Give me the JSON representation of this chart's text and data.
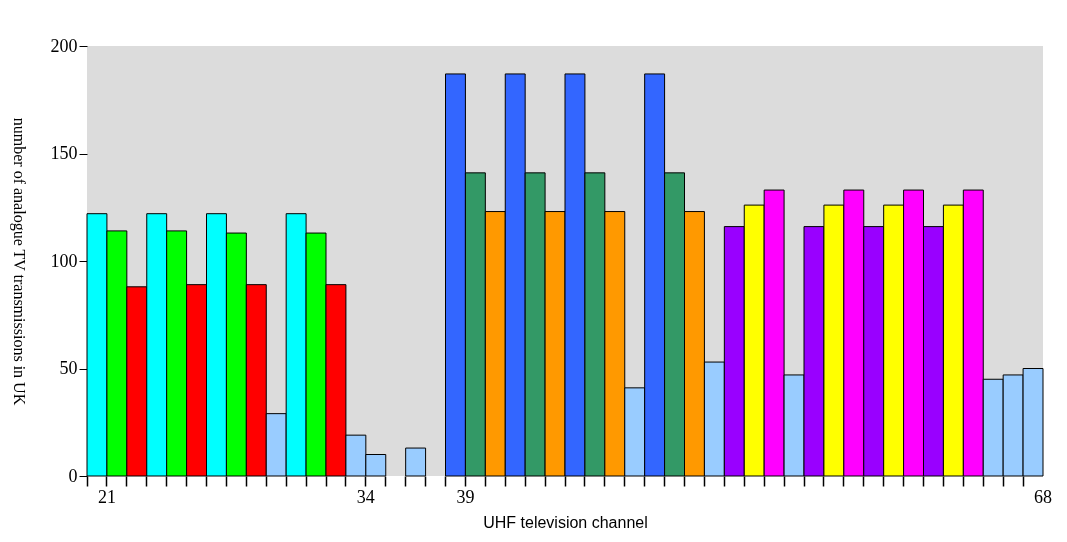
{
  "chart_data": {
    "type": "bar",
    "xlabel": "UHF television channel",
    "ylabel": "number of analogue TV transmissions in UK",
    "categories": [
      "21",
      null,
      null,
      null,
      null,
      null,
      null,
      null,
      null,
      null,
      null,
      null,
      null,
      "34",
      null,
      null,
      null,
      null,
      "39",
      null,
      null,
      null,
      null,
      null,
      null,
      null,
      null,
      null,
      null,
      null,
      null,
      null,
      null,
      null,
      null,
      null,
      null,
      null,
      null,
      null,
      null,
      null,
      null,
      null,
      null,
      null,
      null,
      "68"
    ],
    "values": [
      122,
      114,
      88,
      122,
      114,
      89,
      122,
      113,
      89,
      29,
      122,
      113,
      89,
      19,
      10,
      null,
      13,
      null,
      187,
      141,
      123,
      187,
      141,
      123,
      187,
      141,
      123,
      41,
      187,
      141,
      123,
      53,
      116,
      126,
      133,
      47,
      116,
      126,
      133,
      116,
      126,
      133,
      116,
      126,
      133,
      45,
      47,
      50
    ],
    "colors": [
      "#00ffff",
      "#00ff00",
      "#ff0000",
      "#00ffff",
      "#00ff00",
      "#ff0000",
      "#00ffff",
      "#00ff00",
      "#ff0000",
      "#99ccff",
      "#00ffff",
      "#00ff00",
      "#ff0000",
      "#99ccff",
      "#99ccff",
      "#99ccff",
      "#99ccff",
      "#99ccff",
      "#3366ff",
      "#339966",
      "#ff9900",
      "#3366ff",
      "#339966",
      "#ff9900",
      "#3366ff",
      "#339966",
      "#ff9900",
      "#99ccff",
      "#3366ff",
      "#339966",
      "#ff9900",
      "#99ccff",
      "#9900ff",
      "#ffff00",
      "#ff00ff",
      "#99ccff",
      "#9900ff",
      "#ffff00",
      "#ff00ff",
      "#9900ff",
      "#ffff00",
      "#ff00ff",
      "#9900ff",
      "#ffff00",
      "#ff00ff",
      "#99ccff",
      "#99ccff",
      "#99ccff"
    ],
    "ylim": [
      0,
      200
    ],
    "yticks": [
      0,
      50,
      100,
      150,
      200
    ]
  }
}
